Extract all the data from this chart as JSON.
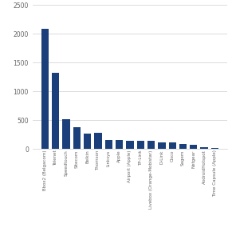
{
  "categories": [
    "Bbox2 (Belgacom)",
    "Telenet",
    "Speedtouch",
    "Sitecom",
    "Belkin",
    "Thomson",
    "Linksys",
    "Apple",
    "Airport (Apple)",
    "TP-Link",
    "Livebox (Orange-Mobistar)",
    "D-Link",
    "Cisco",
    "Sagem",
    "Netgear",
    "AndroidHotspot",
    "Time Capsule (Apple)"
  ],
  "values": [
    2080,
    1315,
    520,
    370,
    265,
    275,
    150,
    150,
    140,
    140,
    140,
    105,
    105,
    85,
    70,
    25,
    20
  ],
  "bar_color": "#1a3f7a",
  "ylim": [
    0,
    2500
  ],
  "yticks": [
    0,
    500,
    1000,
    1500,
    2000,
    2500
  ],
  "background_color": "#ffffff",
  "grid_color": "#cccccc"
}
